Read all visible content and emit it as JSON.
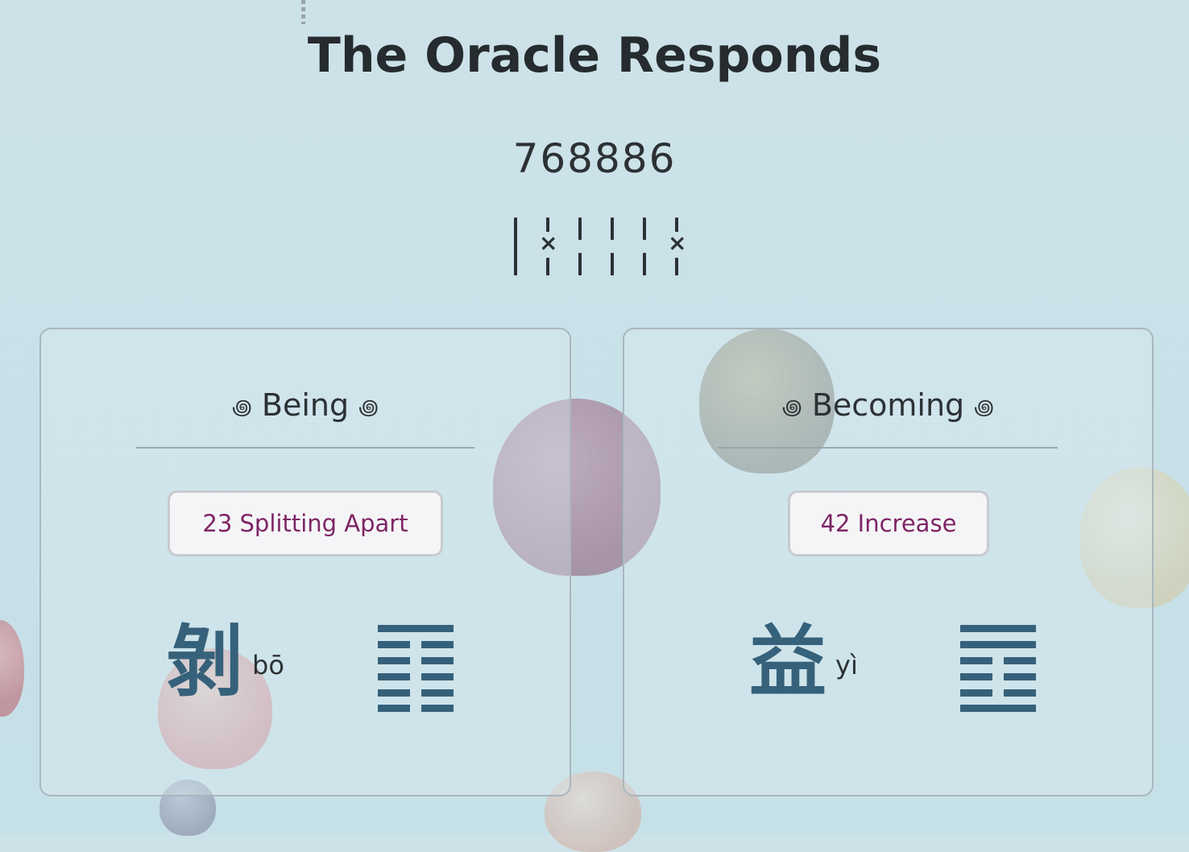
{
  "title": "The Oracle Responds",
  "cast_number": "768886",
  "changing_lines_marker": "×",
  "ornament_left": "꩜",
  "ornament_right": "꩜",
  "being": {
    "heading": "Being",
    "hexagram_name": "23 Splitting Apart",
    "hanzi": "剝",
    "pinyin": "bō"
  },
  "becoming": {
    "heading": "Becoming",
    "hexagram_name": "42 Increase",
    "hanzi": "益",
    "pinyin": "yì"
  },
  "colors": {
    "accent_text": "#7e2565",
    "hexagram_blue": "#36617b",
    "text_dark": "#252b2e"
  }
}
